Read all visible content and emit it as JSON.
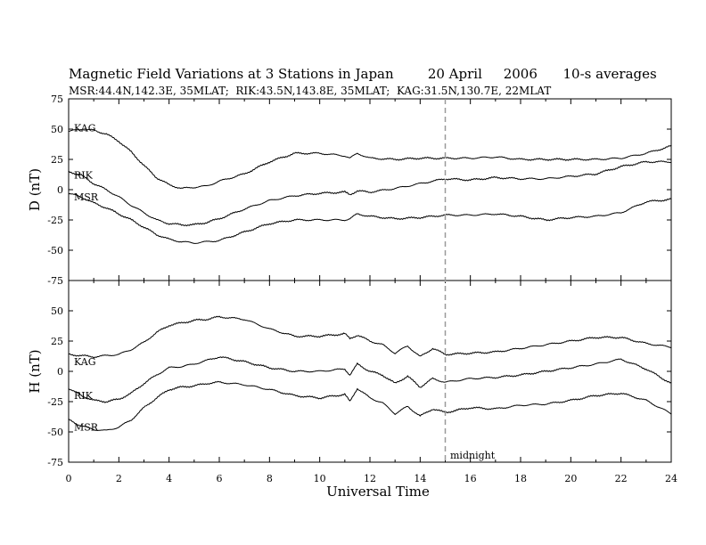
{
  "header": {
    "title": "Magnetic Field Variations at 3 Stations in Japan",
    "date": "20 April",
    "year": "2006",
    "averaging": "10-s averages",
    "stations_line": "MSR:44.4N,142.3E, 35MLAT;  RIK:43.5N,143.8E, 35MLAT;  KAG:31.5N,130.7E, 22MLAT"
  },
  "chart_data": [
    {
      "type": "line",
      "ylabel": "D (nT)",
      "ylim": [
        -75,
        75
      ],
      "yticks": [
        75,
        50,
        25,
        0,
        -25,
        -50,
        -75
      ],
      "xlim": [
        0,
        24
      ],
      "series": [
        {
          "name": "KAG",
          "x": [
            0,
            0.5,
            1,
            1.5,
            2,
            2.5,
            3,
            3.5,
            4,
            4.5,
            5,
            5.5,
            6,
            7,
            8,
            9,
            10,
            11,
            11.2,
            11.5,
            12,
            13,
            14,
            15,
            16,
            17,
            18,
            19,
            20,
            21,
            22,
            23,
            24
          ],
          "y": [
            48,
            50,
            49,
            46,
            40,
            31,
            20,
            10,
            4,
            1,
            2,
            3,
            7,
            13,
            23,
            30,
            30,
            28,
            26,
            30,
            26,
            25,
            26,
            26,
            26,
            27,
            25,
            25,
            25,
            25,
            26,
            30,
            36
          ]
        },
        {
          "name": "RIK",
          "x": [
            0,
            0.5,
            1,
            1.5,
            2,
            2.5,
            3,
            3.5,
            4,
            4.5,
            5,
            5.5,
            6,
            7,
            8,
            9,
            10,
            11,
            11.2,
            11.5,
            12,
            13,
            14,
            15,
            16,
            17,
            18,
            19,
            20,
            21,
            22,
            23,
            24
          ],
          "y": [
            15,
            12,
            5,
            0,
            -6,
            -13,
            -19,
            -25,
            -28,
            -29,
            -29,
            -27,
            -24,
            -16,
            -9,
            -5,
            -3,
            -2,
            -4,
            -1,
            -2,
            1,
            5,
            9,
            8,
            10,
            9,
            9,
            11,
            13,
            19,
            23,
            23
          ]
        },
        {
          "name": "MSR",
          "x": [
            0,
            0.5,
            1,
            1.5,
            2,
            2.5,
            3,
            3.5,
            4,
            4.5,
            5,
            5.5,
            6,
            7,
            8,
            9,
            10,
            11,
            11.2,
            11.5,
            12,
            13,
            14,
            15,
            16,
            17,
            18,
            19,
            20,
            21,
            22,
            23,
            24
          ],
          "y": [
            -3,
            -6,
            -11,
            -15,
            -20,
            -25,
            -31,
            -37,
            -41,
            -43,
            -44,
            -43,
            -42,
            -35,
            -28,
            -25,
            -25,
            -25,
            -24,
            -20,
            -22,
            -24,
            -23,
            -21,
            -21,
            -20,
            -22,
            -25,
            -23,
            -22,
            -19,
            -10,
            -8
          ]
        }
      ]
    },
    {
      "type": "line",
      "ylabel": "H (nT)",
      "ylim": [
        -75,
        75
      ],
      "yticks": [
        50,
        25,
        0,
        -25,
        -50,
        -75
      ],
      "xlim": [
        0,
        24
      ],
      "xticks": [
        0,
        2,
        4,
        6,
        8,
        10,
        12,
        14,
        16,
        18,
        20,
        22,
        24
      ],
      "xlabel": "Universal Time",
      "series": [
        {
          "name": "KAG",
          "x": [
            0,
            0.5,
            1,
            1.5,
            2,
            2.5,
            3,
            3.5,
            4,
            4.5,
            5,
            5.5,
            6,
            7,
            8,
            9,
            10,
            11,
            11.2,
            11.5,
            12,
            12.5,
            13,
            13.5,
            14,
            14.5,
            15,
            16,
            17,
            18,
            19,
            20,
            21,
            22,
            23,
            24
          ],
          "y": [
            14,
            13,
            12,
            13,
            14,
            18,
            24,
            32,
            38,
            40,
            42,
            43,
            45,
            43,
            35,
            29,
            29,
            31,
            27,
            30,
            25,
            22,
            15,
            21,
            12,
            19,
            14,
            15,
            16,
            19,
            22,
            25,
            28,
            28,
            23,
            20
          ]
        },
        {
          "name": "RIK",
          "x": [
            0,
            0.5,
            1,
            1.5,
            2,
            2.5,
            3,
            3.5,
            4,
            4.5,
            5,
            5.5,
            6,
            7,
            8,
            9,
            10,
            11,
            11.2,
            11.5,
            12,
            12.5,
            13,
            13.5,
            14,
            14.5,
            15,
            16,
            17,
            18,
            19,
            20,
            21,
            22,
            23,
            24
          ],
          "y": [
            -14,
            -20,
            -24,
            -25,
            -23,
            -18,
            -10,
            -3,
            3,
            4,
            6,
            9,
            12,
            8,
            3,
            0,
            0,
            2,
            -3,
            6,
            0,
            -3,
            -10,
            -4,
            -13,
            -6,
            -9,
            -6,
            -5,
            -3,
            0,
            3,
            6,
            10,
            2,
            -10
          ]
        },
        {
          "name": "MSR",
          "x": [
            0,
            0.5,
            1,
            1.5,
            2,
            2.5,
            3,
            3.5,
            4,
            4.5,
            5,
            5.5,
            6,
            7,
            8,
            9,
            10,
            11,
            11.2,
            11.5,
            12,
            12.5,
            13,
            13.5,
            14,
            14.5,
            15,
            16,
            17,
            18,
            19,
            20,
            21,
            22,
            23,
            24
          ],
          "y": [
            -40,
            -45,
            -48,
            -49,
            -46,
            -40,
            -30,
            -22,
            -15,
            -13,
            -12,
            -10,
            -9,
            -11,
            -15,
            -20,
            -22,
            -19,
            -25,
            -14,
            -22,
            -26,
            -35,
            -29,
            -37,
            -31,
            -34,
            -30,
            -31,
            -28,
            -27,
            -24,
            -20,
            -18,
            -24,
            -35
          ]
        }
      ],
      "annotation": {
        "text": "midnight",
        "x": 15
      }
    }
  ],
  "colors": {
    "line": "#000000",
    "midnight_line": "#999999",
    "background": "#ffffff"
  }
}
